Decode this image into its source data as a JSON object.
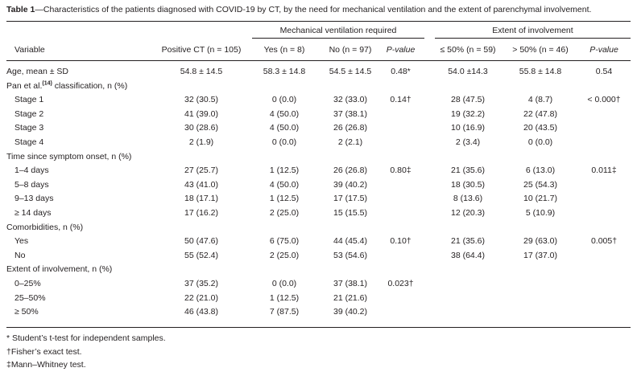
{
  "caption": {
    "label": "Table 1",
    "text": "—Characteristics of the patients diagnosed with COVID-19 by CT, by the need for mechanical ventilation and the extent of parenchymal involvement."
  },
  "groups": {
    "mv": "Mechanical ventilation required",
    "ext": "Extent of involvement"
  },
  "columns": [
    "Variable",
    "Positive CT (n = 105)",
    "Yes (n = 8)",
    "No (n = 97)",
    "P-value",
    "≤ 50% (n = 59)",
    "> 50% (n = 46)",
    "P-value"
  ],
  "rows": [
    {
      "label": "Age, mean ± SD",
      "indent": false,
      "cells": [
        "54.8 ± 14.5",
        "58.3 ± 14.8",
        "54.5 ± 14.5",
        "0.48*",
        "54.0 ±14.3",
        "55.8 ± 14.8",
        "0.54"
      ]
    },
    {
      "label": "Pan et al.",
      "label_sup": "(14)",
      "label_rest": " classification, n (%)",
      "indent": false,
      "cells": [
        "",
        "",
        "",
        "",
        "",
        "",
        ""
      ]
    },
    {
      "label": "Stage 1",
      "indent": true,
      "cells": [
        "32 (30.5)",
        "0 (0.0)",
        "32 (33.0)",
        "0.14†",
        "28 (47.5)",
        "4 (8.7)",
        "< 0.000†"
      ]
    },
    {
      "label": "Stage 2",
      "indent": true,
      "cells": [
        "41 (39.0)",
        "4 (50.0)",
        "37 (38.1)",
        "",
        "19 (32.2)",
        "22 (47.8)",
        ""
      ]
    },
    {
      "label": "Stage 3",
      "indent": true,
      "cells": [
        "30 (28.6)",
        "4 (50.0)",
        "26 (26.8)",
        "",
        "10 (16.9)",
        "20 (43.5)",
        ""
      ]
    },
    {
      "label": "Stage 4",
      "indent": true,
      "cells": [
        "2 (1.9)",
        "0 (0.0)",
        "2 (2.1)",
        "",
        "2 (3.4)",
        "0 (0.0)",
        ""
      ]
    },
    {
      "label": "Time since symptom onset, n (%)",
      "indent": false,
      "cells": [
        "",
        "",
        "",
        "",
        "",
        "",
        ""
      ]
    },
    {
      "label": "1–4 days",
      "indent": true,
      "cells": [
        "27 (25.7)",
        "1 (12.5)",
        "26 (26.8)",
        "0.80‡",
        "21 (35.6)",
        "6 (13.0)",
        "0.011‡"
      ]
    },
    {
      "label": "5–8 days",
      "indent": true,
      "cells": [
        "43 (41.0)",
        "4 (50.0)",
        "39 (40.2)",
        "",
        "18 (30.5)",
        "25 (54.3)",
        ""
      ]
    },
    {
      "label": "9–13 days",
      "indent": true,
      "cells": [
        "18 (17.1)",
        "1 (12.5)",
        "17 (17.5)",
        "",
        "8 (13.6)",
        "10 (21.7)",
        ""
      ]
    },
    {
      "label": "≥ 14 days",
      "indent": true,
      "cells": [
        "17 (16.2)",
        "2 (25.0)",
        "15 (15.5)",
        "",
        "12 (20.3)",
        "5 (10.9)",
        ""
      ]
    },
    {
      "label": "Comorbidities, n (%)",
      "indent": false,
      "cells": [
        "",
        "",
        "",
        "",
        "",
        "",
        ""
      ]
    },
    {
      "label": "Yes",
      "indent": true,
      "cells": [
        "50 (47.6)",
        "6 (75.0)",
        "44 (45.4)",
        "0.10†",
        "21 (35.6)",
        "29 (63.0)",
        "0.005†"
      ]
    },
    {
      "label": "No",
      "indent": true,
      "cells": [
        "55 (52.4)",
        "2 (25.0)",
        "53 (54.6)",
        "",
        "38 (64.4)",
        "17 (37.0)",
        ""
      ]
    },
    {
      "label": "Extent of involvement, n (%)",
      "indent": false,
      "cells": [
        "",
        "",
        "",
        "",
        "",
        "",
        ""
      ]
    },
    {
      "label": "0–25%",
      "indent": true,
      "cells": [
        "37 (35.2)",
        "0 (0.0)",
        "37 (38.1)",
        "0.023†",
        "",
        "",
        ""
      ]
    },
    {
      "label": "25–50%",
      "indent": true,
      "cells": [
        "22 (21.0)",
        "1 (12.5)",
        "21 (21.6)",
        "",
        "",
        "",
        ""
      ]
    },
    {
      "label": "≥ 50%",
      "indent": true,
      "cells": [
        "46 (43.8)",
        "7 (87.5)",
        "39 (40.2)",
        "",
        "",
        "",
        ""
      ]
    }
  ],
  "footnotes": [
    "* Student’s t-test for independent samples.",
    "†Fisher’s exact test.",
    "‡Mann–Whitney test."
  ]
}
